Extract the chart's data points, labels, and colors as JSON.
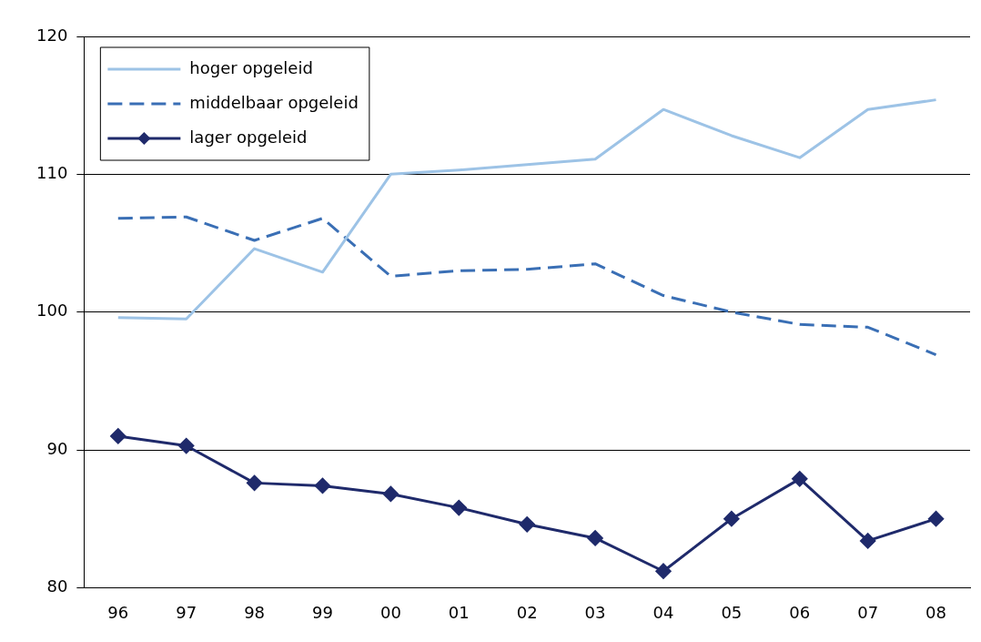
{
  "chart_data": {
    "type": "line",
    "categories": [
      "96",
      "97",
      "98",
      "99",
      "00",
      "01",
      "02",
      "03",
      "04",
      "05",
      "06",
      "07",
      "08"
    ],
    "series": [
      {
        "name": "hoger opgeleid",
        "color": "#9dc3e6",
        "line_style": "solid",
        "marker": "none",
        "values": [
          99.6,
          99.5,
          104.6,
          102.9,
          110,
          110.3,
          110.7,
          111.1,
          114.7,
          112.8,
          111.2,
          114.7,
          115.4
        ]
      },
      {
        "name": "middelbaar opgeleid",
        "color": "#3a6fb5",
        "line_style": "dashed",
        "marker": "none",
        "values": [
          106.8,
          106.9,
          105.2,
          106.8,
          102.6,
          103,
          103.1,
          103.5,
          101.2,
          100,
          99.1,
          98.9,
          96.9
        ]
      },
      {
        "name": "lager opgeleid",
        "color": "#1f2a6b",
        "line_style": "solid",
        "marker": "diamond",
        "values": [
          91,
          90.3,
          87.6,
          87.4,
          86.8,
          85.8,
          84.6,
          83.6,
          81.2,
          85,
          87.9,
          83.4,
          85
        ]
      }
    ],
    "ylim": [
      80,
      120
    ],
    "yticks": [
      80,
      90,
      100,
      110,
      120
    ],
    "grid": "y",
    "legend": "top left"
  }
}
